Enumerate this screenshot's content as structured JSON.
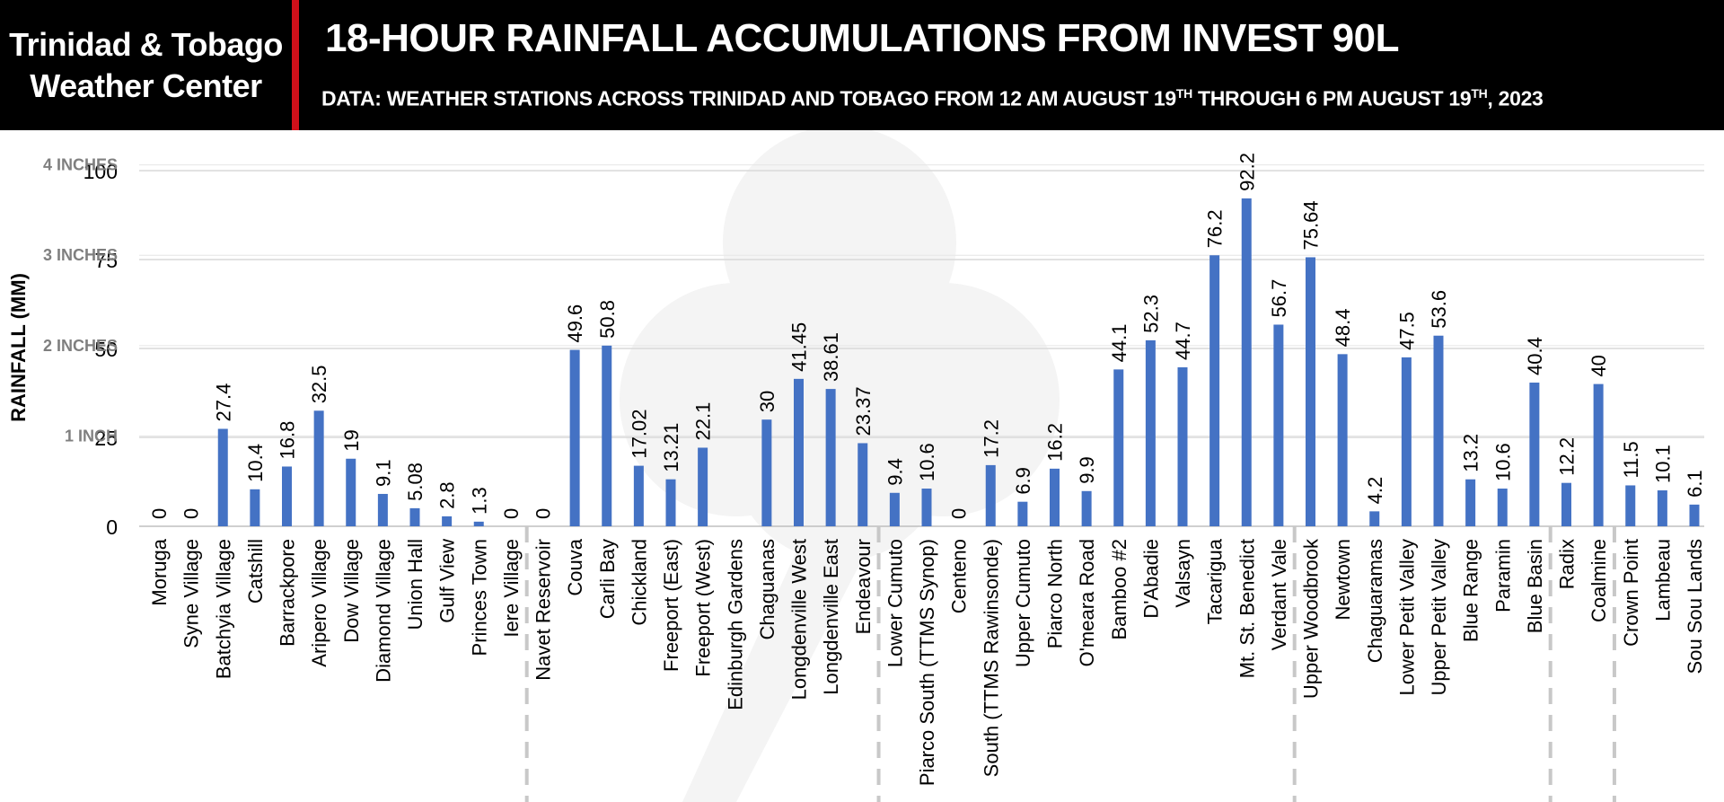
{
  "header": {
    "brand_line1": "Trinidad & Tobago",
    "brand_line2": "Weather Center",
    "title": "18-HOUR RAINFALL ACCUMULATIONS FROM INVEST 90L",
    "subtitle_part1": "DATA: WEATHER STATIONS ACROSS TRINIDAD AND TOBAGO FROM 12 AM AUGUST 19",
    "subtitle_sup1": "TH",
    "subtitle_part2": " THROUGH 6 PM AUGUST 19",
    "subtitle_sup2": "TH",
    "subtitle_part3": ", 2023"
  },
  "colors": {
    "bar": "#4472c4",
    "header_bg": "#000000",
    "accent": "#d0101a",
    "grid": "#d9d9d9",
    "divider": "#c8c8c8"
  },
  "chart_data": {
    "type": "bar",
    "ylabel": "RAINFALL (MM)",
    "ylim": [
      0,
      100
    ],
    "yticks": [
      0,
      25,
      50,
      75,
      100
    ],
    "secondary_ticks": [
      {
        "label": "1 INCH",
        "value": 25.4
      },
      {
        "label": "2 INCHES",
        "value": 50.8
      },
      {
        "label": "3 INCHES",
        "value": 76.2
      },
      {
        "label": "4 INCHES",
        "value": 101.6
      }
    ],
    "grid": true,
    "categories": [
      "Moruga",
      "Syne Village",
      "Batchyia Village",
      "Catshill",
      "Barrackpore",
      "Aripero Village",
      "Dow Village",
      "Diamond Village",
      "Union Hall",
      "Gulf View",
      "Princes Town",
      "Iere Village",
      "Navet Reservoir",
      "Couva",
      "Carli Bay",
      "Chickland",
      "Freeport (East)",
      "Freeport (West)",
      "Edinburgh Gardens",
      "Chaguanas",
      "Longdenville West",
      "Longdenville East",
      "Endeavour",
      "Lower Cumuto",
      "Piarco South (TTMS Synop)",
      "Centeno",
      "South (TTMS Rawinsonde)",
      "Upper Cumuto",
      "Piarco North",
      "O'meara Road",
      "Bamboo #2",
      "D'Abadie",
      "Valsayn",
      "Tacarigua",
      "Mt. St. Benedict",
      "Verdant Vale",
      "Upper Woodbrook",
      "Newtown",
      "Chaguaramas",
      "Lower Petit Valley",
      "Upper Petit Valley",
      "Blue Range",
      "Paramin",
      "Blue Basin",
      "Radix",
      "Coalmine",
      "Crown Point",
      "Lambeau",
      "Sou Sou Lands"
    ],
    "values": [
      0,
      0,
      27.4,
      10.4,
      16.8,
      32.5,
      19,
      9.1,
      5.08,
      2.8,
      1.3,
      0,
      0,
      49.6,
      50.8,
      17.02,
      13.21,
      22.1,
      null,
      30,
      41.45,
      38.61,
      23.37,
      9.4,
      10.6,
      0,
      17.2,
      6.9,
      16.2,
      9.9,
      44.1,
      52.3,
      44.7,
      76.2,
      92.2,
      56.7,
      75.64,
      48.4,
      4.2,
      47.5,
      53.6,
      13.2,
      10.6,
      40.4,
      12.2,
      40,
      11.5,
      10.1,
      6.1
    ],
    "labels": [
      "0",
      "0",
      "27.4",
      "10.4",
      "16.8",
      "32.5",
      "19",
      "9.1",
      "5.08",
      "2.8",
      "1.3",
      "0",
      "0",
      "49.6",
      "50.8",
      "17.02",
      "13.21",
      "22.1",
      "",
      "30",
      "41.45",
      "38.61",
      "23.37",
      "9.4",
      "10.6",
      "0",
      "17.2",
      "6.9",
      "16.2",
      "9.9",
      "44.1",
      "52.3",
      "44.7",
      "76.2",
      "92.2",
      "56.7",
      "75.64",
      "48.4",
      "4.2",
      "47.5",
      "53.6",
      "13.2",
      "10.6",
      "40.4",
      "12.2",
      "40",
      "11.5",
      "10.1",
      "6.1"
    ],
    "group_dividers_after_index": [
      11,
      22,
      35,
      43,
      45
    ]
  }
}
